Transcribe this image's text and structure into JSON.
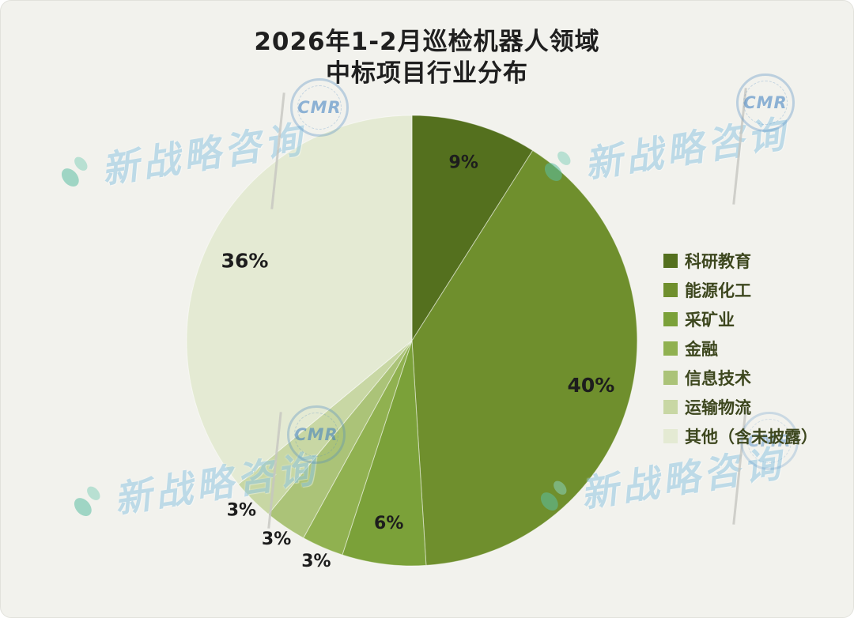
{
  "title": {
    "line1": "2026年1-2月巡检机器人领域",
    "line2": "中标项目行业分布"
  },
  "chart_data": {
    "type": "pie",
    "title": "2026年1-2月巡检机器人领域中标项目行业分布",
    "unit": "percent",
    "start_angle_deg": 0,
    "direction": "clockwise",
    "legend_position": "right",
    "segments": [
      {
        "label": "科研教育",
        "value": 9,
        "pct_label": "9%",
        "color": "#54701e"
      },
      {
        "label": "能源化工",
        "value": 40,
        "pct_label": "40%",
        "color": "#6f8f2d"
      },
      {
        "label": "采矿业",
        "value": 6,
        "pct_label": "6%",
        "color": "#7ba139"
      },
      {
        "label": "金融",
        "value": 3,
        "pct_label": "3%",
        "color": "#90b150"
      },
      {
        "label": "信息技术",
        "value": 3,
        "pct_label": "3%",
        "color": "#abc378"
      },
      {
        "label": "运输物流",
        "value": 3,
        "pct_label": "3%",
        "color": "#c8d7a4"
      },
      {
        "label": "其他（含未披露）",
        "value": 36,
        "pct_label": "36%",
        "color": "#e4ead3"
      }
    ]
  },
  "watermark": {
    "brand": "新战略咨询",
    "seal_text": "CMR"
  }
}
